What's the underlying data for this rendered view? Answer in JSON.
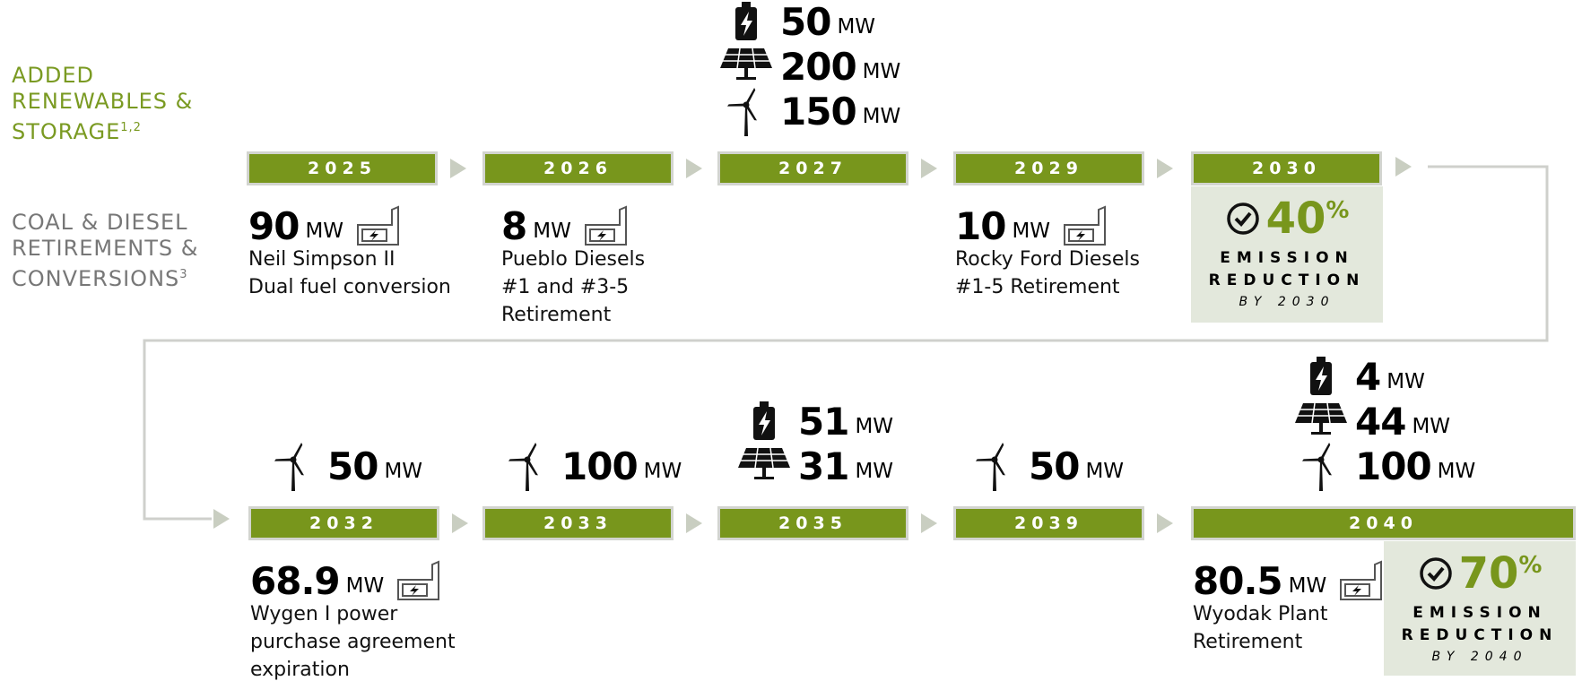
{
  "row_labels": [
    {
      "lines": [
        "ADDED",
        "RENEWABLES &",
        "STORAGE"
      ],
      "note": "1,2"
    },
    {
      "lines": [
        "COAL & DIESEL",
        "RETIREMENTS &",
        "CONVERSIONS"
      ],
      "note": "3"
    }
  ],
  "milestones": [
    {
      "year": "2025",
      "retirement": {
        "value": "90",
        "unit": "MW",
        "lines": [
          "Neil Simpson II",
          "Dual fuel conversion"
        ]
      }
    },
    {
      "year": "2026",
      "retirement": {
        "value": "8",
        "unit": "MW",
        "lines": [
          "Pueblo Diesels",
          "#1 and #3-5",
          "Retirement"
        ]
      }
    },
    {
      "year": "2027",
      "additions": [
        {
          "kind": "battery",
          "value": "50",
          "unit": "MW"
        },
        {
          "kind": "solar",
          "value": "200",
          "unit": "MW"
        },
        {
          "kind": "wind",
          "value": "150",
          "unit": "MW"
        }
      ]
    },
    {
      "year": "2029",
      "retirement": {
        "value": "10",
        "unit": "MW",
        "lines": [
          "Rocky Ford Diesels",
          "#1-5 Retirement"
        ]
      }
    },
    {
      "year": "2030",
      "badge": {
        "value": "40",
        "symbol": "%",
        "lines": [
          "EMISSION",
          "REDUCTION"
        ],
        "by": "BY 2030"
      }
    },
    {
      "year": "2032",
      "additions": [
        {
          "kind": "wind",
          "value": "50",
          "unit": "MW"
        }
      ],
      "retirement": {
        "value": "68.9",
        "unit": "MW",
        "lines": [
          "Wygen I power",
          "purchase agreement",
          "expiration"
        ]
      }
    },
    {
      "year": "2033",
      "additions": [
        {
          "kind": "wind",
          "value": "100",
          "unit": "MW"
        }
      ]
    },
    {
      "year": "2035",
      "additions": [
        {
          "kind": "battery",
          "value": "51",
          "unit": "MW"
        },
        {
          "kind": "solar",
          "value": "31",
          "unit": "MW"
        }
      ]
    },
    {
      "year": "2039",
      "additions": [
        {
          "kind": "wind",
          "value": "50",
          "unit": "MW"
        }
      ]
    },
    {
      "year": "2040",
      "additions": [
        {
          "kind": "battery",
          "value": "4",
          "unit": "MW"
        },
        {
          "kind": "solar",
          "value": "44",
          "unit": "MW"
        },
        {
          "kind": "wind",
          "value": "100",
          "unit": "MW"
        }
      ],
      "retirement": {
        "value": "80.5",
        "unit": "MW",
        "lines": [
          "Wyodak Plant",
          "Retirement"
        ]
      },
      "badge": {
        "value": "70",
        "symbol": "%",
        "lines": [
          "EMISSION",
          "REDUCTION"
        ],
        "by": "BY 2040"
      }
    }
  ]
}
